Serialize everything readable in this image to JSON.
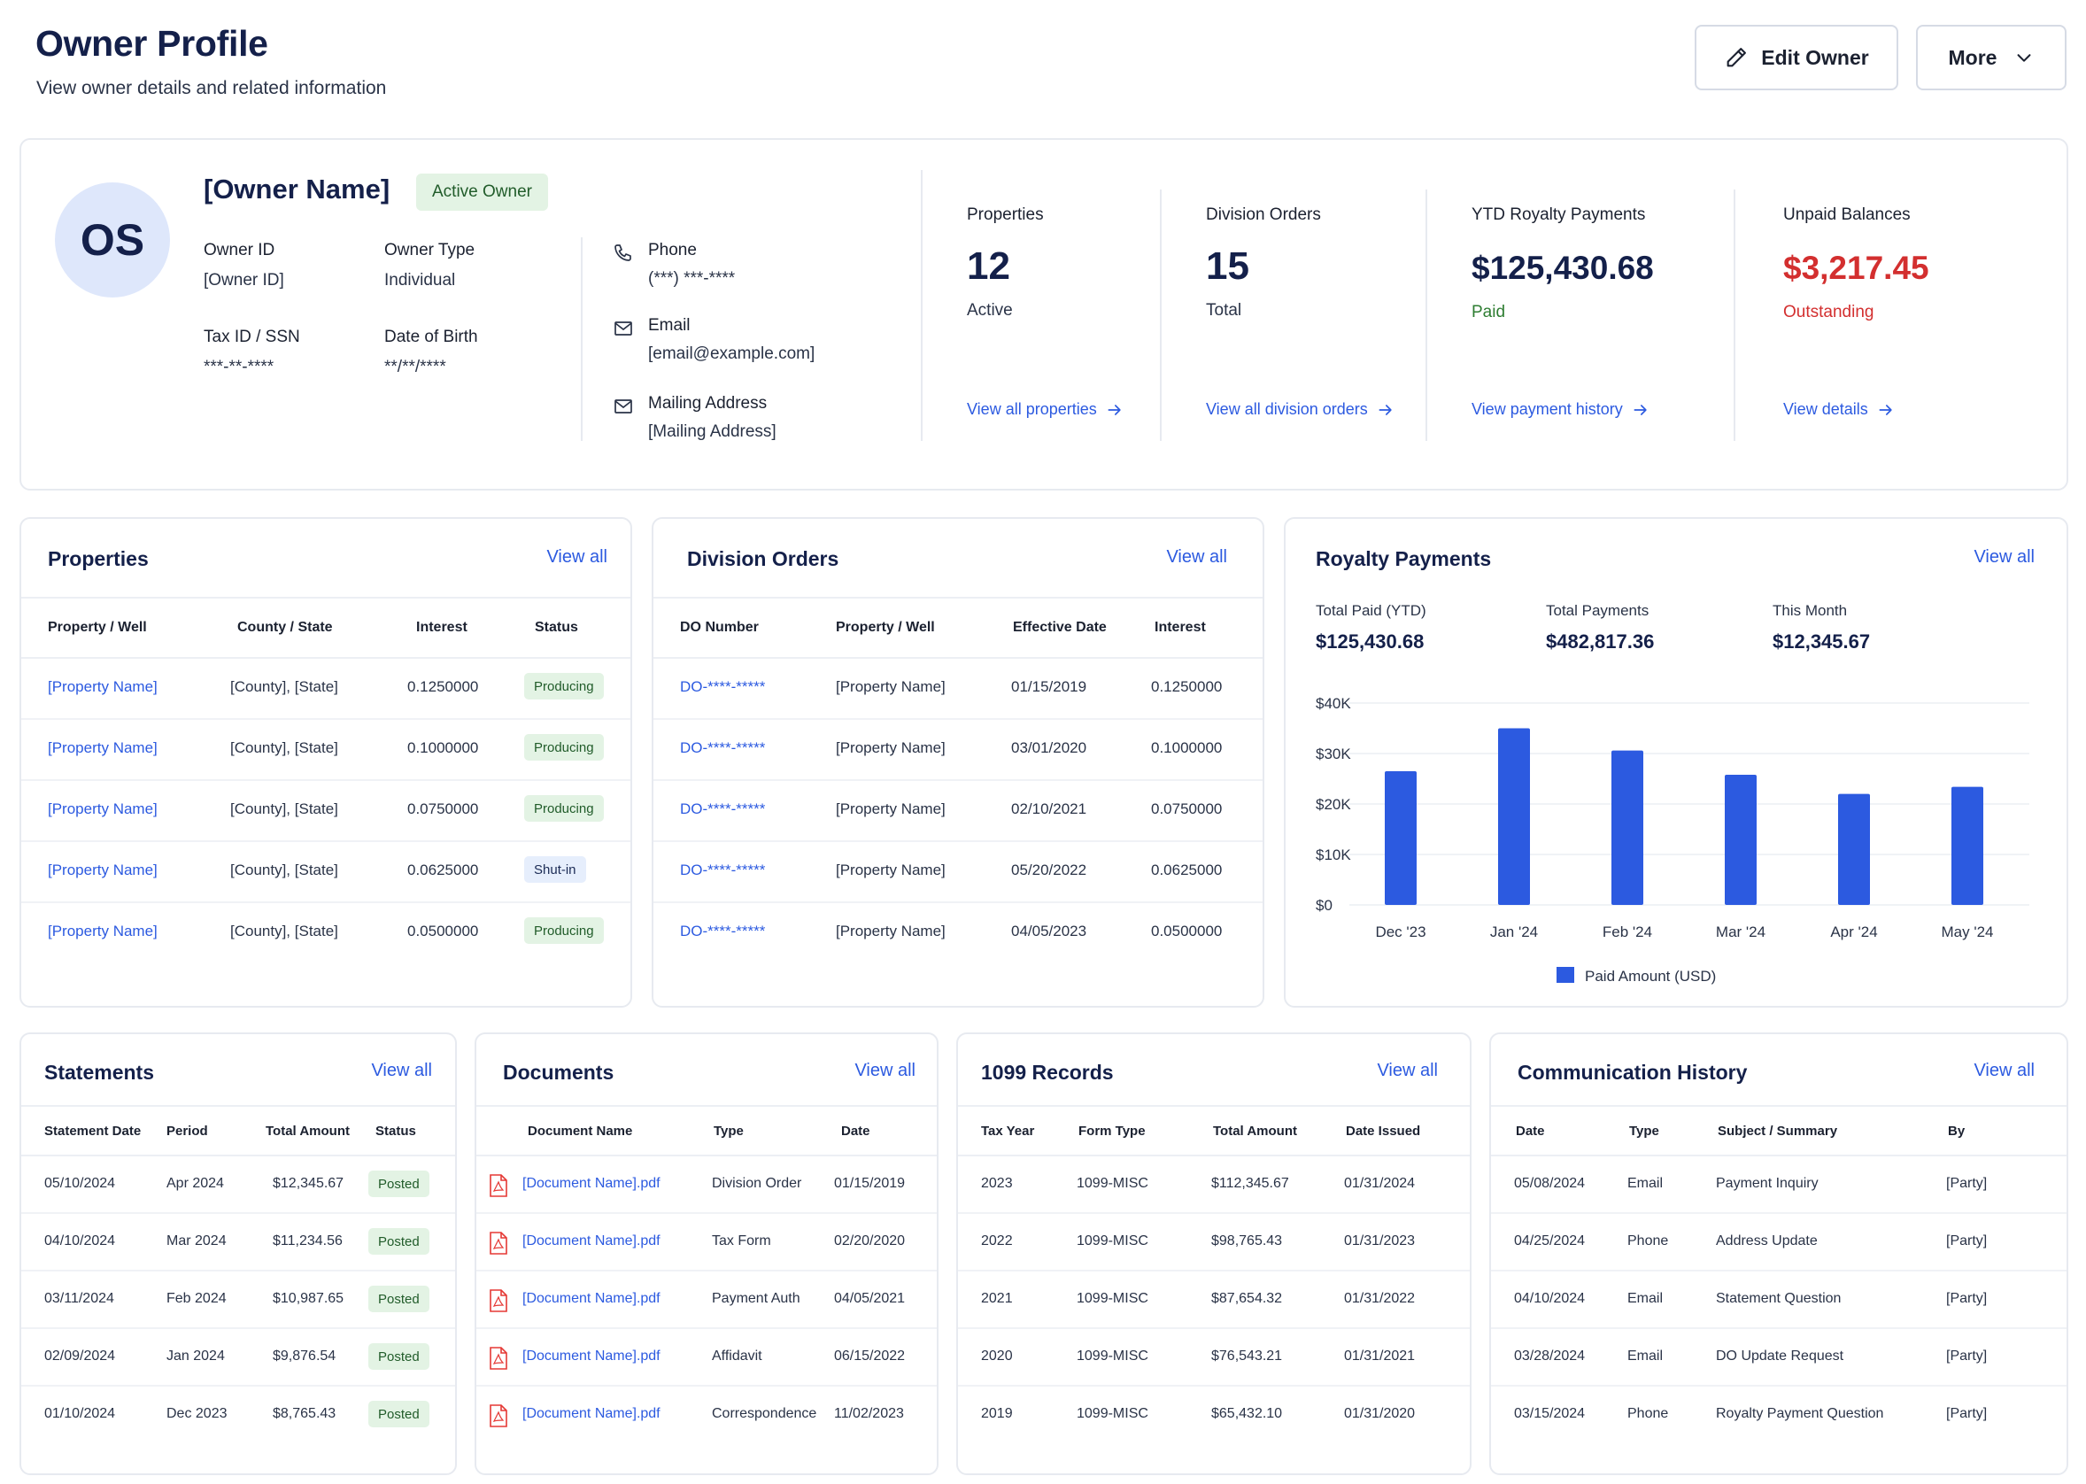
{
  "header": {
    "title": "Owner Profile",
    "subtitle": "View owner details and related information",
    "edit_label": "Edit Owner",
    "more_label": "More"
  },
  "profile": {
    "initials": "OS",
    "name": "[Owner Name]",
    "status_badge": "Active Owner",
    "fields": {
      "owner_id_label": "Owner ID",
      "owner_id": "[Owner ID]",
      "owner_type_label": "Owner Type",
      "owner_type": "Individual",
      "tax_id_label": "Tax ID / SSN",
      "tax_id": "***-**-****",
      "dob_label": "Date of Birth",
      "dob": "**/**/****"
    },
    "contact": {
      "phone_label": "Phone",
      "phone": "(***) ***-****",
      "email_label": "Email",
      "email": "[email@example.com]",
      "address_label": "Mailing Address",
      "address": "[Mailing Address]"
    },
    "stats": [
      {
        "label": "Properties",
        "value": "12",
        "sub": "Active",
        "link": "View all properties",
        "color": "#14204a",
        "sub_color": "#2a3347"
      },
      {
        "label": "Division Orders",
        "value": "15",
        "sub": "Total",
        "link": "View all division orders",
        "color": "#14204a",
        "sub_color": "#2a3347"
      },
      {
        "label": "YTD Royalty Payments",
        "value": "$125,430.68",
        "sub": "Paid",
        "link": "View payment history",
        "color": "#14204a",
        "sub_color": "#2e7d32"
      },
      {
        "label": "Unpaid Balances",
        "value": "$3,217.45",
        "sub": "Outstanding",
        "link": "View details",
        "color": "#d32f2f",
        "sub_color": "#d32f2f"
      }
    ]
  },
  "properties": {
    "title": "Properties",
    "view_all": "View all",
    "columns": [
      "Property / Well",
      "County / State",
      "Interest",
      "Status"
    ],
    "rows": [
      {
        "name": "[Property Name]",
        "county": "[County], [State]",
        "interest": "0.1250000",
        "status": "Producing"
      },
      {
        "name": "[Property Name]",
        "county": "[County], [State]",
        "interest": "0.1000000",
        "status": "Producing"
      },
      {
        "name": "[Property Name]",
        "county": "[County], [State]",
        "interest": "0.0750000",
        "status": "Producing"
      },
      {
        "name": "[Property Name]",
        "county": "[County], [State]",
        "interest": "0.0625000",
        "status": "Shut-in"
      },
      {
        "name": "[Property Name]",
        "county": "[County], [State]",
        "interest": "0.0500000",
        "status": "Producing"
      }
    ]
  },
  "division_orders": {
    "title": "Division Orders",
    "view_all": "View all",
    "columns": [
      "DO Number",
      "Property / Well",
      "Effective Date",
      "Interest"
    ],
    "rows": [
      {
        "number": "DO-****-*****",
        "property": "[Property Name]",
        "date": "01/15/2019",
        "interest": "0.1250000"
      },
      {
        "number": "DO-****-*****",
        "property": "[Property Name]",
        "date": "03/01/2020",
        "interest": "0.1000000"
      },
      {
        "number": "DO-****-*****",
        "property": "[Property Name]",
        "date": "02/10/2021",
        "interest": "0.0750000"
      },
      {
        "number": "DO-****-*****",
        "property": "[Property Name]",
        "date": "05/20/2022",
        "interest": "0.0625000"
      },
      {
        "number": "DO-****-*****",
        "property": "[Property Name]",
        "date": "04/05/2023",
        "interest": "0.0500000"
      }
    ]
  },
  "royalty": {
    "title": "Royalty Payments",
    "view_all": "View all",
    "summary": [
      {
        "label": "Total Paid (YTD)",
        "value": "$125,430.68"
      },
      {
        "label": "Total Payments",
        "value": "$482,817.36"
      },
      {
        "label": "This Month",
        "value": "$12,345.67"
      }
    ]
  },
  "chart_data": {
    "type": "bar",
    "categories": [
      "Dec '23",
      "Jan '24",
      "Feb '24",
      "Mar '24",
      "Apr '24",
      "May '24"
    ],
    "series": [
      {
        "name": "Paid Amount (USD)",
        "values": [
          26500,
          35000,
          30600,
          25800,
          22000,
          23400
        ],
        "color": "#2c5ae0"
      }
    ],
    "ylim": [
      0,
      40000
    ],
    "yticks": [
      0,
      10000,
      20000,
      30000,
      40000
    ],
    "ytick_labels": [
      "$0",
      "$10K",
      "$20K",
      "$30K",
      "$40K"
    ],
    "grid": true,
    "legend": "bottom-center"
  },
  "statements": {
    "title": "Statements",
    "view_all": "View all",
    "columns": [
      "Statement Date",
      "Period",
      "Total Amount",
      "Status"
    ],
    "rows": [
      {
        "date": "05/10/2024",
        "period": "Apr 2024",
        "amount": "$12,345.67",
        "status": "Posted"
      },
      {
        "date": "04/10/2024",
        "period": "Mar 2024",
        "amount": "$11,234.56",
        "status": "Posted"
      },
      {
        "date": "03/11/2024",
        "period": "Feb 2024",
        "amount": "$10,987.65",
        "status": "Posted"
      },
      {
        "date": "02/09/2024",
        "period": "Jan 2024",
        "amount": "$9,876.54",
        "status": "Posted"
      },
      {
        "date": "01/10/2024",
        "period": "Dec 2023",
        "amount": "$8,765.43",
        "status": "Posted"
      }
    ]
  },
  "documents": {
    "title": "Documents",
    "view_all": "View all",
    "columns": [
      "Document Name",
      "Type",
      "Date"
    ],
    "rows": [
      {
        "name": "[Document Name].pdf",
        "type": "Division Order",
        "date": "01/15/2019"
      },
      {
        "name": "[Document Name].pdf",
        "type": "Tax Form",
        "date": "02/20/2020"
      },
      {
        "name": "[Document Name].pdf",
        "type": "Payment Auth",
        "date": "04/05/2021"
      },
      {
        "name": "[Document Name].pdf",
        "type": "Affidavit",
        "date": "06/15/2022"
      },
      {
        "name": "[Document Name].pdf",
        "type": "Correspondence",
        "date": "11/02/2023"
      }
    ]
  },
  "records_1099": {
    "title": "1099 Records",
    "view_all": "View all",
    "columns": [
      "Tax Year",
      "Form Type",
      "Total Amount",
      "Date Issued"
    ],
    "rows": [
      {
        "year": "2023",
        "form": "1099-MISC",
        "amount": "$112,345.67",
        "issued": "01/31/2024"
      },
      {
        "year": "2022",
        "form": "1099-MISC",
        "amount": "$98,765.43",
        "issued": "01/31/2023"
      },
      {
        "year": "2021",
        "form": "1099-MISC",
        "amount": "$87,654.32",
        "issued": "01/31/2022"
      },
      {
        "year": "2020",
        "form": "1099-MISC",
        "amount": "$76,543.21",
        "issued": "01/31/2021"
      },
      {
        "year": "2019",
        "form": "1099-MISC",
        "amount": "$65,432.10",
        "issued": "01/31/2020"
      }
    ]
  },
  "communications": {
    "title": "Communication History",
    "view_all": "View all",
    "columns": [
      "Date",
      "Type",
      "Subject / Summary",
      "By"
    ],
    "rows": [
      {
        "date": "05/08/2024",
        "type": "Email",
        "subject": "Payment Inquiry",
        "by": "[Party]"
      },
      {
        "date": "04/25/2024",
        "type": "Phone",
        "subject": "Address Update",
        "by": "[Party]"
      },
      {
        "date": "04/10/2024",
        "type": "Email",
        "subject": "Statement Question",
        "by": "[Party]"
      },
      {
        "date": "03/28/2024",
        "type": "Email",
        "subject": "DO Update Request",
        "by": "[Party]"
      },
      {
        "date": "03/15/2024",
        "type": "Phone",
        "subject": "Royalty Payment Question",
        "by": "[Party]"
      }
    ]
  }
}
